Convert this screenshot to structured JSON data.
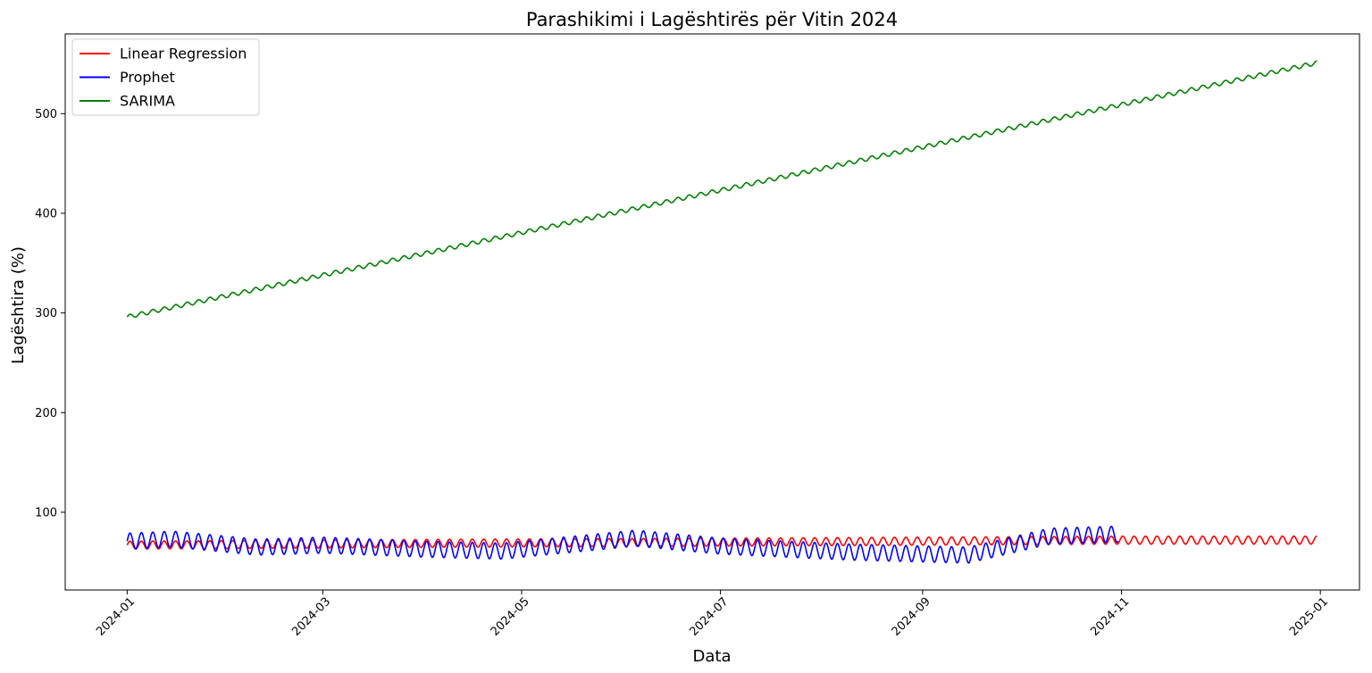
{
  "chart_data": {
    "type": "line",
    "title": "Parashikimi i Lagështirës për Vitin 2024",
    "xlabel": "Data",
    "ylabel": "Lagështira (%)",
    "x_ticks": [
      "2024-01",
      "2024-03",
      "2024-05",
      "2024-07",
      "2024-09",
      "2024-11",
      "2025-01"
    ],
    "y_ticks": [
      100,
      200,
      300,
      400,
      500
    ],
    "xlim": [
      "2023-12-13",
      "2025-01-13"
    ],
    "ylim": [
      22,
      580
    ],
    "grid": false,
    "legend_position": "top-left",
    "series": [
      {
        "name": "Linear Regression",
        "color": "#ff0000",
        "x_start": "2024-01-01",
        "x_end": "2024-12-31",
        "baseline_x": [
          "2024-01-01",
          "2024-04-15",
          "2024-07-01",
          "2024-11-01",
          "2024-12-31"
        ],
        "baseline_y": [
          67,
          69,
          70,
          72,
          72
        ],
        "oscillation_amplitude": 4,
        "period_days": 3.5
      },
      {
        "name": "Prophet",
        "color": "#0000ff",
        "x_start": "2024-01-01",
        "x_end": "2024-10-31",
        "baseline_x": [
          "2024-01-01",
          "2024-01-15",
          "2024-02-10",
          "2024-03-01",
          "2024-04-01",
          "2024-04-25",
          "2024-06-05",
          "2024-07-01",
          "2024-08-10",
          "2024-09-15",
          "2024-10-10",
          "2024-10-31"
        ],
        "baseline_y": [
          71,
          73,
          65,
          67,
          63,
          61,
          74,
          66,
          60,
          57,
          76,
          78
        ],
        "oscillation_amplitude": 8,
        "period_days": 3.5
      },
      {
        "name": "SARIMA",
        "color": "#008000",
        "x_start": "2024-01-01",
        "x_end": "2024-12-31",
        "baseline_x": [
          "2024-01-01",
          "2024-12-31"
        ],
        "baseline_y": [
          296,
          551
        ],
        "oscillation_amplitude": 2,
        "period_days": 3.5
      }
    ]
  }
}
